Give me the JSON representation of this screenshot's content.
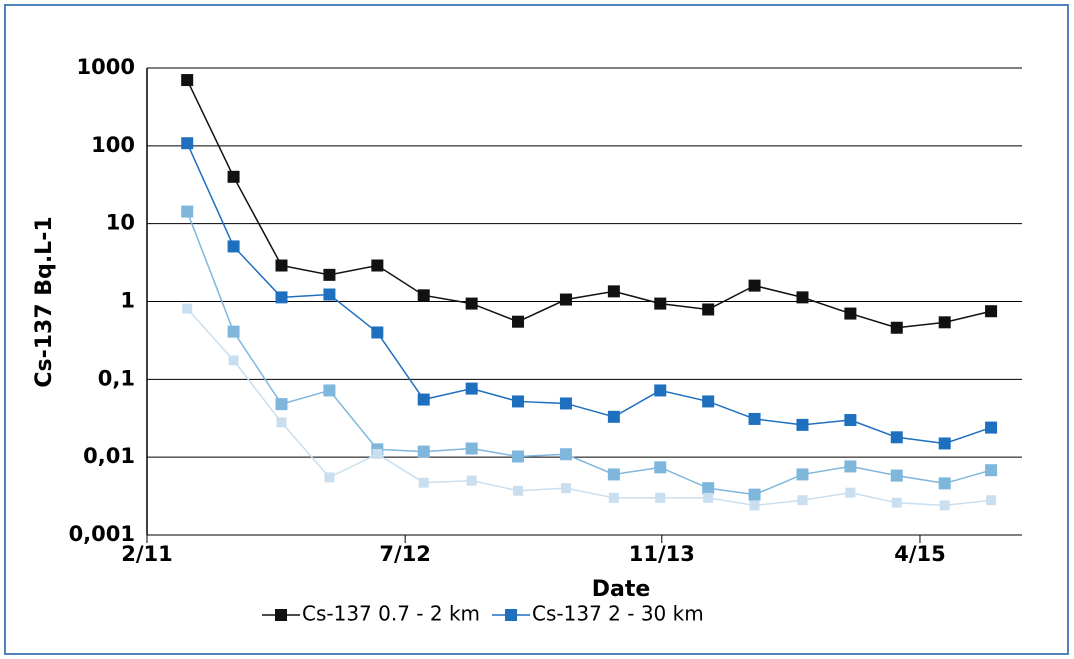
{
  "chart_data": {
    "type": "line",
    "log_y": true,
    "grid": true,
    "x_label": "Date",
    "y_label": "Cs-137 Bq.L-1",
    "x": [
      2.6,
      5.6,
      8.7,
      11.8,
      14.9,
      17.9,
      21,
      24,
      27.1,
      30.2,
      33.2,
      36.3,
      39.3,
      42.4,
      45.5,
      48.5,
      51.6,
      54.6
    ],
    "xlim": [
      0,
      56.6
    ],
    "xticks": [
      {
        "value": 0,
        "label": "2/11"
      },
      {
        "value": 16.7,
        "label": "7/12"
      },
      {
        "value": 33.3,
        "label": "11/13"
      },
      {
        "value": 50,
        "label": "4/15"
      }
    ],
    "ylim": [
      0.001,
      1000
    ],
    "yticks": [
      {
        "value": 0.001,
        "label": "0,001"
      },
      {
        "value": 0.01,
        "label": "0,01"
      },
      {
        "value": 0.1,
        "label": "0,1"
      },
      1,
      10,
      100,
      1000
    ],
    "series": [
      {
        "name": "Cs-137 0.7 - 2 km",
        "color": "#111111",
        "values": [
          700,
          40,
          2.9,
          2.2,
          2.9,
          1.2,
          0.94,
          0.55,
          1.06,
          1.35,
          0.94,
          0.79,
          1.6,
          1.13,
          0.7,
          0.46,
          0.54,
          0.75
        ]
      },
      {
        "name": "Cs-137 2 - 30 km",
        "color": "#1f6fbf",
        "values": [
          108,
          5.1,
          1.13,
          1.23,
          0.4,
          0.055,
          0.076,
          0.052,
          0.049,
          0.033,
          0.072,
          0.052,
          0.031,
          0.026,
          0.03,
          0.018,
          0.015,
          0.024
        ]
      },
      {
        "color": "#7fb6dc",
        "values": [
          14.3,
          0.41,
          0.048,
          0.072,
          0.0126,
          0.0118,
          0.0129,
          0.0102,
          0.0109,
          0.006,
          0.0074,
          0.004,
          0.0033,
          0.006,
          0.0076,
          0.0058,
          0.0046,
          0.0068
        ]
      },
      {
        "color": "#c9dff0",
        "values": [
          0.81,
          0.175,
          0.028,
          0.0055,
          0.011,
          0.0047,
          0.005,
          0.0037,
          0.004,
          0.003,
          0.003,
          0.003,
          0.0024,
          0.0028,
          0.0035,
          0.0026,
          0.0024,
          0.0028
        ]
      }
    ]
  }
}
